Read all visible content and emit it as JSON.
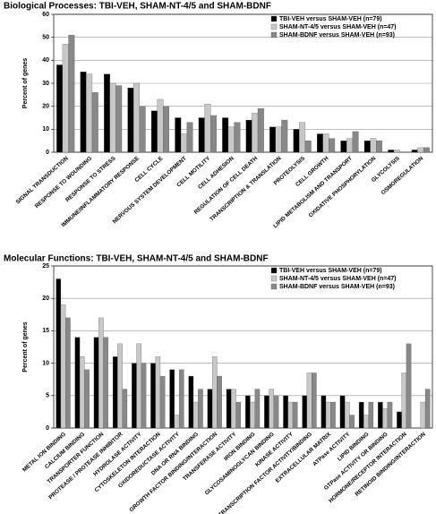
{
  "chart_data": [
    {
      "type": "bar",
      "title": "Biological Processes: TBI-VEH, SHAM-NT-4/5 and SHAM-BDNF",
      "y_label": "Percent of genes",
      "categories": [
        "SIGNAL TRANSDUCTION",
        "RESPONSE TO WOUNDING",
        "RESPONSE TO STRESS",
        "IMMUNE/INFLAMMATORY RESPONSE",
        "CELL CYCLE",
        "NERVOUS SYSTEM DEVELOPMENT",
        "CELL MOTILITY",
        "CELL ADHESION",
        "REGULATION OF CELL DEATH",
        "TRANSCRIPTION & TRANSLATION",
        "PROTEOLYSIS",
        "CELL GROWTH",
        "LIPID METABOLISM AND TRANSPORT",
        "OXIDATIVE PHOSPHORYLATION",
        "GLYCOLYSIS",
        "OSMOREGULATION"
      ],
      "series": [
        {
          "name": "TBI-VEH versus SHAM-VEH (n=79)",
          "color": "#000000",
          "values": [
            38,
            35,
            34,
            28,
            18,
            15,
            15,
            15,
            14,
            11,
            10,
            8,
            5,
            5,
            1,
            1
          ]
        },
        {
          "name": "SHAM-NT-4/5 versus SHAM-VEH (n=47)",
          "color": "#c8c8c8",
          "values": [
            47,
            34,
            30,
            30,
            23,
            8,
            21,
            11,
            17,
            11,
            13,
            8,
            6,
            6,
            1,
            2
          ]
        },
        {
          "name": "SHAM-BDNF versus SHAM-VEH (n=93)",
          "color": "#888888",
          "values": [
            51,
            26,
            29,
            20,
            20,
            13,
            16,
            13,
            19,
            14,
            5,
            6,
            9,
            5,
            0,
            2
          ]
        }
      ],
      "ylim": [
        0,
        60
      ],
      "yticks": [
        0,
        10,
        20,
        30,
        40,
        50,
        60
      ],
      "grid": true,
      "legend": "top-right"
    },
    {
      "type": "bar",
      "title": "Molecular Functions: TBI-VEH, SHAM-NT-4/5 and SHAM-BDNF",
      "y_label": "Percent of genes",
      "categories": [
        "METAL ION BINDING",
        "CALCIUM BINDING",
        "TRANSPORTER FUNCTION",
        "PROTEASE / PROTEASE INHIBITOR",
        "HYDROLASE ACTIVITY",
        "CYTOSKELETON INTERACTION",
        "OXIDOREDUCTASE ACTIVITY",
        "DNA OR RNA BINDING",
        "GROWTH FACTOR BINDING/INTERACTION",
        "TRANSFERASE ACTIVITY",
        "IRON BINDING",
        "GLYCOSAMINOGLYCAN BINDING",
        "KINASE ACTIVITY",
        "TRANSCRIPTION FACTOR ACTIVITY/BINDING",
        "EXTRACELLULAR MATRIX",
        "ATPase ACTIVITY",
        "LIPID BINDING",
        "GTPase ACTIVITY OR BINDING",
        "HORMONE/RECEPTOR INTERACTION",
        "RETINOID BINDING/INTERACTION"
      ],
      "series": [
        {
          "name": "TBI-VEH versus SHAM-VEH (n=79)",
          "color": "#000000",
          "values": [
            23,
            14,
            14,
            11,
            10,
            10,
            9,
            8,
            6,
            6,
            5,
            5,
            5,
            5,
            5,
            5,
            4,
            4,
            2.5,
            0
          ]
        },
        {
          "name": "SHAM-NT-4/5 versus SHAM-VEH (n=47)",
          "color": "#c8c8c8",
          "values": [
            19,
            11,
            17,
            13,
            13,
            11,
            2,
            4,
            11,
            6,
            4,
            6,
            4,
            8.5,
            4,
            4,
            2,
            3,
            8.5,
            4
          ]
        },
        {
          "name": "SHAM-BDNF versus SHAM-VEH (n=93)",
          "color": "#888888",
          "values": [
            17,
            9,
            14,
            6,
            10,
            8,
            9,
            6,
            8,
            4,
            6,
            5,
            4,
            8.5,
            4,
            2,
            4,
            4,
            13,
            6
          ]
        }
      ],
      "ylim": [
        0,
        25
      ],
      "yticks": [
        0,
        5,
        10,
        15,
        20,
        25
      ],
      "grid": true,
      "legend": "top-right"
    }
  ]
}
